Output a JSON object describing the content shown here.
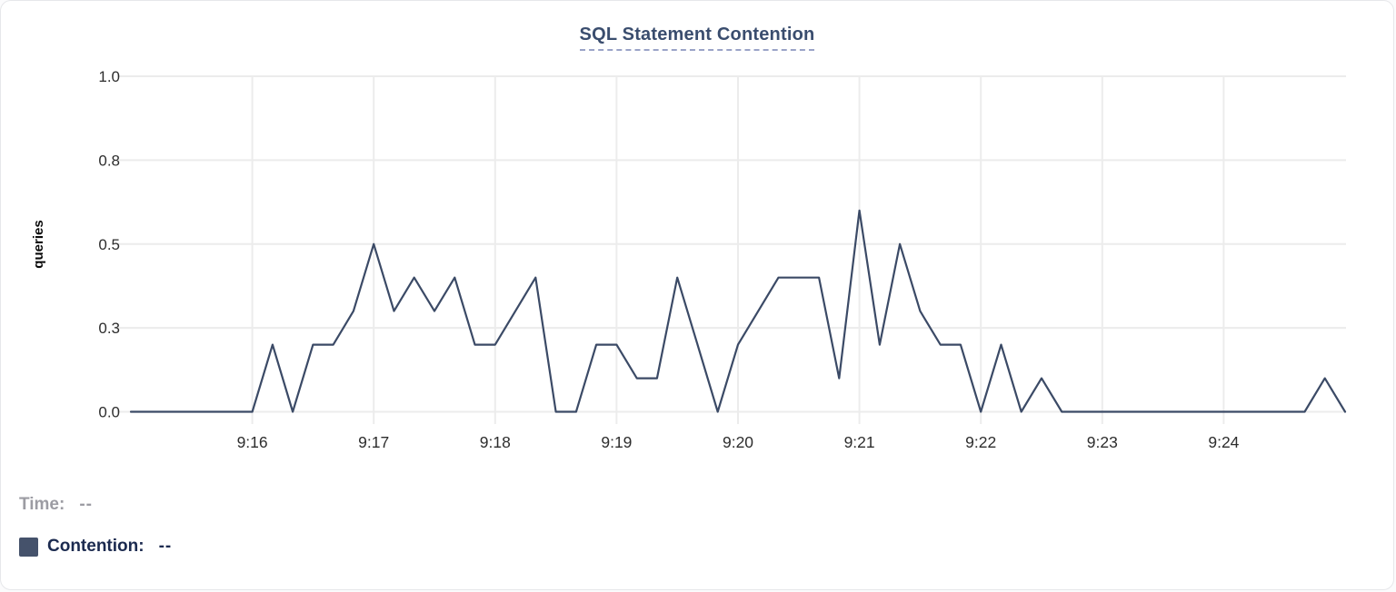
{
  "card": {
    "title": "SQL Statement Contention"
  },
  "legend": {
    "time_label": "Time:",
    "time_value": "--",
    "series_label": "Contention:",
    "series_value": "--",
    "swatch_color": "#45526b"
  },
  "colors": {
    "line": "#3b4a66",
    "title": "#3a4d6e",
    "title_underline": "#9aa3c7",
    "grid": "#ececec",
    "tick_text": "#2d2d2d",
    "axis_label_text": "#0a0a0a",
    "time_text": "#9c9ca3",
    "contention_text": "#1b2a4f"
  },
  "chart_data": {
    "type": "line",
    "title": "SQL Statement Contention",
    "xlabel": "",
    "ylabel": "queries",
    "ylim": [
      0,
      1.0
    ],
    "grid": true,
    "legend_position": "bottom-left",
    "x_start": "9:15:00",
    "x_end": "9:25:00",
    "interval_seconds": 10,
    "x_ticks": [
      "9:16",
      "9:17",
      "9:18",
      "9:19",
      "9:20",
      "9:21",
      "9:22",
      "9:23",
      "9:24"
    ],
    "y_ticks": [
      {
        "value": 0.0,
        "label": "0.0"
      },
      {
        "value": 0.25,
        "label": "0.3"
      },
      {
        "value": 0.5,
        "label": "0.5"
      },
      {
        "value": 0.75,
        "label": "0.8"
      },
      {
        "value": 1.0,
        "label": "1.0"
      }
    ],
    "series": [
      {
        "name": "Contention",
        "values": [
          0,
          0,
          0,
          0,
          0,
          0,
          0,
          0.2,
          0,
          0.2,
          0.2,
          0.3,
          0.5,
          0.3,
          0.4,
          0.3,
          0.4,
          0.2,
          0.2,
          0.3,
          0.4,
          0,
          0,
          0.2,
          0.2,
          0.1,
          0.1,
          0.4,
          0.2,
          0,
          0.2,
          0.3,
          0.4,
          0.4,
          0.4,
          0.1,
          0.6,
          0.2,
          0.5,
          0.3,
          0.2,
          0.2,
          0,
          0.2,
          0,
          0.1,
          0,
          0,
          0,
          0,
          0,
          0,
          0,
          0,
          0,
          0,
          0,
          0,
          0,
          0.1,
          0
        ]
      }
    ]
  }
}
